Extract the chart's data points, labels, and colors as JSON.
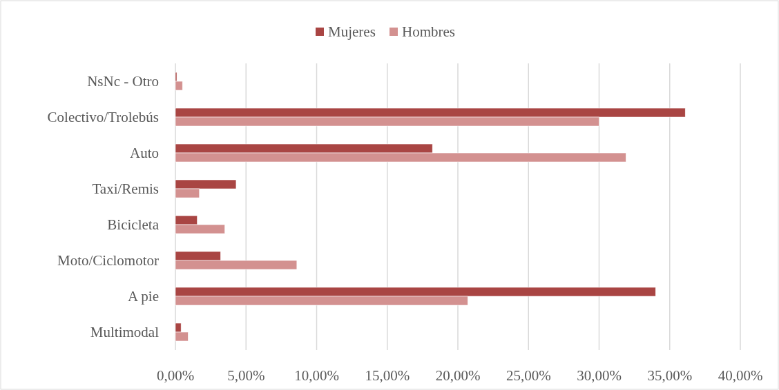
{
  "chart_data": {
    "type": "bar",
    "orientation": "horizontal",
    "categories": [
      "NsNc - Otro",
      "Colectivo/Trolebús",
      "Auto",
      "Taxi/Remis",
      "Bicicleta",
      "Moto/Ciclomotor",
      "A pie",
      "Multimodal"
    ],
    "series": [
      {
        "name": "Mujeres",
        "color": "#a94543",
        "values": [
          0.1,
          36.1,
          18.2,
          4.3,
          1.55,
          3.2,
          34.0,
          0.4
        ]
      },
      {
        "name": "Hombres",
        "color": "#d39190",
        "values": [
          0.5,
          30.0,
          31.9,
          1.7,
          3.5,
          8.6,
          20.7,
          0.9
        ]
      }
    ],
    "xlim": [
      0,
      40
    ],
    "xticks": [
      {
        "value": 0,
        "label": "0,00%"
      },
      {
        "value": 5,
        "label": "5,00%"
      },
      {
        "value": 10,
        "label": "10,00%"
      },
      {
        "value": 15,
        "label": "15,00%"
      },
      {
        "value": 20,
        "label": "20,00%"
      },
      {
        "value": 25,
        "label": "25,00%"
      },
      {
        "value": 30,
        "label": "30,00%"
      },
      {
        "value": 35,
        "label": "35,00%"
      },
      {
        "value": 40,
        "label": "40,00%"
      }
    ],
    "grid": "x",
    "legend": "top"
  }
}
